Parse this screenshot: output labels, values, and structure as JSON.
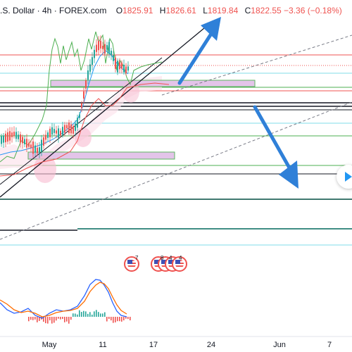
{
  "header": {
    "title": ".S. Dollar · 4h · FOREX.com",
    "o_label": "O",
    "o_value": "1825.91",
    "h_label": "H",
    "h_value": "1826.61",
    "l_label": "L",
    "l_value": "1819.84",
    "c_label": "C",
    "c_value": "1822.55",
    "change": "−3.36 (−0.18%)"
  },
  "x_axis": {
    "labels": [
      "May",
      "11",
      "17",
      "24",
      "Jun",
      "7"
    ]
  },
  "events": [
    {
      "name": "us-event-1",
      "count": "7"
    },
    {
      "name": "us-event-2",
      "counts": [
        "8",
        "4",
        "4"
      ]
    }
  ],
  "icons": {
    "play": "play-arrow-icon",
    "flag": "us-flag-icon",
    "arrow_up": "blue-up-arrow",
    "arrow_down": "blue-down-arrow"
  },
  "colors": {
    "up_candle": "#26a69a",
    "down_candle": "#ef5350",
    "arrow": "#2f80d8",
    "channel": "#787b86",
    "macd": "#2962ff",
    "signal": "#ff6d00",
    "zone": "#e1bee7"
  }
}
